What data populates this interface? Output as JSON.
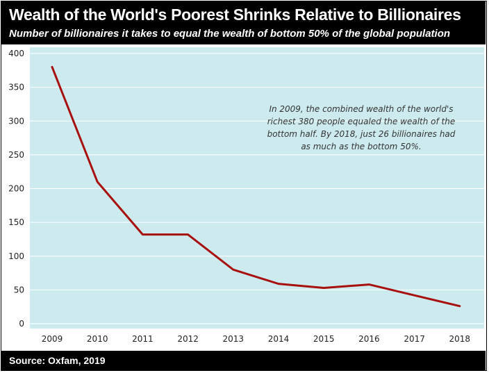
{
  "header": {
    "title": "Wealth of the World's Poorest Shrinks Relative to Billionaires",
    "subtitle": "Number of billionaires it takes to equal the wealth of bottom 50% of the global population"
  },
  "footer": {
    "source": "Source: Oxfam, 2019"
  },
  "annotation": "In 2009, the combined wealth of the world's richest 380 people equaled the wealth of the bottom half. By 2018, just 26 billionaires had as much as the bottom 50%.",
  "colors": {
    "plot_background": "#cdebef",
    "line": "#a8100f",
    "header_background": "#000000",
    "header_text": "#ffffff"
  },
  "chart_data": {
    "type": "line",
    "title": "Wealth of the World's Poorest Shrinks Relative to Billionaires",
    "subtitle": "Number of billionaires it takes to equal the wealth of bottom 50% of the global population",
    "xlabel": "",
    "ylabel": "",
    "categories": [
      "2009",
      "2010",
      "2011",
      "2012",
      "2013",
      "2014",
      "2015",
      "2016",
      "2017",
      "2018"
    ],
    "series": [
      {
        "values": [
          380,
          210,
          132,
          132,
          80,
          59,
          53,
          58,
          42,
          26
        ]
      }
    ],
    "ylim": [
      0,
      400
    ],
    "yticks": [
      "0",
      "50",
      "100",
      "150",
      "200",
      "250",
      "300",
      "350",
      "400"
    ],
    "grid": true,
    "legend": "none"
  }
}
